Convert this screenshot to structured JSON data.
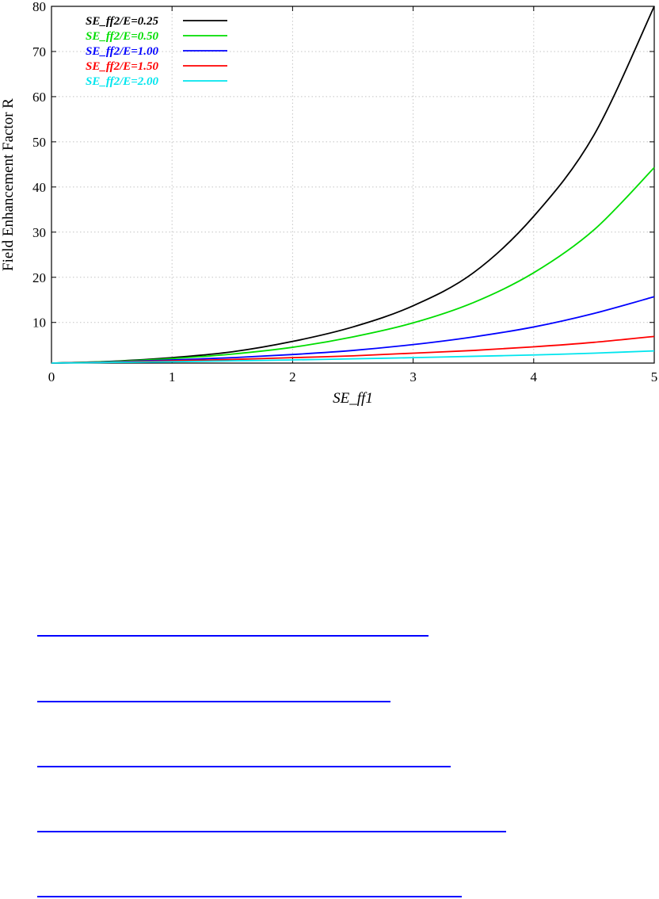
{
  "chart_data": {
    "type": "line",
    "xlabel": "SE_ff1",
    "ylabel": "Field Enhancement Factor R",
    "xlim": [
      0,
      5
    ],
    "ylim": [
      1,
      80
    ],
    "x_ticks": [
      "0",
      "1",
      "2",
      "3",
      "4",
      "5"
    ],
    "y_ticks": [
      "10",
      "20",
      "30",
      "40",
      "50",
      "60",
      "70",
      "80"
    ],
    "grid": true,
    "legend_position": "top-left",
    "x": [
      0,
      0.5,
      1,
      1.5,
      2,
      2.5,
      3,
      3.5,
      4,
      4.5,
      5
    ],
    "series": [
      {
        "name": "SE_ff2/E=0.25",
        "color": "#000000",
        "values": [
          1.0,
          1.4,
          2.2,
          3.5,
          5.8,
          9.0,
          13.7,
          21.0,
          33.5,
          51.5,
          80.0
        ]
      },
      {
        "name": "SE_ff2/E=0.50",
        "color": "#00dd00",
        "values": [
          1.0,
          1.35,
          2.0,
          3.0,
          4.5,
          6.8,
          9.9,
          14.4,
          21.0,
          30.5,
          44.3
        ]
      },
      {
        "name": "SE_ff2/E=1.00",
        "color": "#0000ff",
        "values": [
          1.0,
          1.25,
          1.7,
          2.2,
          2.9,
          3.8,
          5.1,
          6.8,
          9.0,
          12.0,
          15.7
        ]
      },
      {
        "name": "SE_ff2/E=1.50",
        "color": "#ff0000",
        "values": [
          1.0,
          1.2,
          1.5,
          1.8,
          2.2,
          2.6,
          3.2,
          3.8,
          4.6,
          5.6,
          6.9
        ]
      },
      {
        "name": "SE_ff2/E=2.00",
        "color": "#00e5ee",
        "values": [
          1.0,
          1.15,
          1.3,
          1.5,
          1.7,
          1.95,
          2.2,
          2.5,
          2.8,
          3.2,
          3.7
        ]
      }
    ]
  }
}
